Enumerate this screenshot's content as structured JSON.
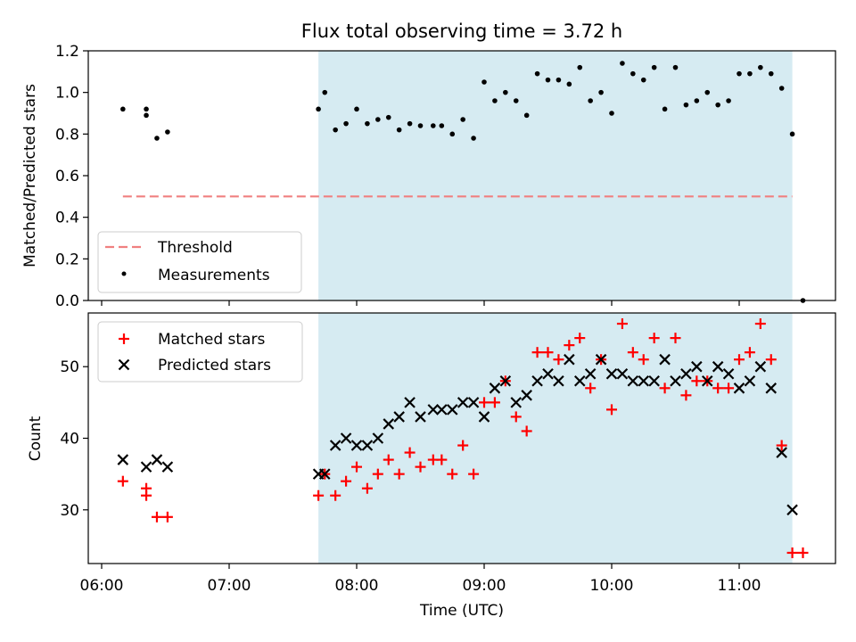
{
  "chart_data": [
    {
      "type": "scatter",
      "title": "Flux total observing time = 3.72 h",
      "ylabel": "Matched/Predicted stars",
      "xlabel": "",
      "xlim": [
        "06:00",
        "11:45"
      ],
      "ylim": [
        0,
        1.2
      ],
      "yticks": [
        "0.0",
        "0.2",
        "0.4",
        "0.6",
        "0.8",
        "1.0",
        "1.2"
      ],
      "highlight_span": [
        "07:42",
        "11:25"
      ],
      "highlight_color": "#add8e6",
      "legend_position": "lower-left",
      "threshold": {
        "name": "Threshold",
        "value": 0.5,
        "x_range": [
          "06:10",
          "11:25"
        ],
        "color": "#f08080"
      },
      "series": [
        {
          "name": "Measurements",
          "color": "#000000",
          "marker": "dot",
          "points": [
            [
              "06:10",
              0.92
            ],
            [
              "06:21",
              0.92
            ],
            [
              "06:21",
              0.89
            ],
            [
              "06:26",
              0.78
            ],
            [
              "06:31",
              0.81
            ],
            [
              "07:42",
              0.92
            ],
            [
              "07:45",
              1.0
            ],
            [
              "07:50",
              0.82
            ],
            [
              "07:55",
              0.85
            ],
            [
              "08:00",
              0.92
            ],
            [
              "08:05",
              0.85
            ],
            [
              "08:10",
              0.87
            ],
            [
              "08:15",
              0.88
            ],
            [
              "08:20",
              0.82
            ],
            [
              "08:25",
              0.85
            ],
            [
              "08:30",
              0.84
            ],
            [
              "08:36",
              0.84
            ],
            [
              "08:40",
              0.84
            ],
            [
              "08:45",
              0.8
            ],
            [
              "08:50",
              0.87
            ],
            [
              "08:55",
              0.78
            ],
            [
              "09:00",
              1.05
            ],
            [
              "09:05",
              0.96
            ],
            [
              "09:10",
              1.0
            ],
            [
              "09:15",
              0.96
            ],
            [
              "09:20",
              0.89
            ],
            [
              "09:25",
              1.09
            ],
            [
              "09:30",
              1.06
            ],
            [
              "09:35",
              1.06
            ],
            [
              "09:40",
              1.04
            ],
            [
              "09:45",
              1.12
            ],
            [
              "09:50",
              0.96
            ],
            [
              "09:55",
              1.0
            ],
            [
              "10:00",
              0.9
            ],
            [
              "10:05",
              1.14
            ],
            [
              "10:10",
              1.09
            ],
            [
              "10:15",
              1.06
            ],
            [
              "10:20",
              1.12
            ],
            [
              "10:25",
              0.92
            ],
            [
              "10:30",
              1.12
            ],
            [
              "10:35",
              0.94
            ],
            [
              "10:40",
              0.96
            ],
            [
              "10:45",
              1.0
            ],
            [
              "10:50",
              0.94
            ],
            [
              "10:55",
              0.96
            ],
            [
              "11:00",
              1.09
            ],
            [
              "11:05",
              1.09
            ],
            [
              "11:10",
              1.12
            ],
            [
              "11:15",
              1.09
            ],
            [
              "11:20",
              1.02
            ],
            [
              "11:25",
              0.8
            ],
            [
              "11:30",
              0.0
            ]
          ]
        }
      ]
    },
    {
      "type": "scatter",
      "title": "",
      "xlabel": "Time (UTC)",
      "ylabel": "Count",
      "xlim": [
        "06:00",
        "11:45"
      ],
      "ylim": [
        22.5,
        57.5
      ],
      "yticks": [
        "30",
        "40",
        "50"
      ],
      "xticks": [
        "06:00",
        "07:00",
        "08:00",
        "09:00",
        "10:00",
        "11:00"
      ],
      "highlight_span": [
        "07:42",
        "11:25"
      ],
      "highlight_color": "#add8e6",
      "legend_position": "top-left",
      "series": [
        {
          "name": "Matched stars",
          "color": "#ff0000",
          "marker": "plus",
          "points": [
            [
              "06:10",
              34
            ],
            [
              "06:21",
              33
            ],
            [
              "06:21",
              32
            ],
            [
              "06:26",
              29
            ],
            [
              "06:31",
              29
            ],
            [
              "07:42",
              32
            ],
            [
              "07:45",
              35
            ],
            [
              "07:50",
              32
            ],
            [
              "07:55",
              34
            ],
            [
              "08:00",
              36
            ],
            [
              "08:05",
              33
            ],
            [
              "08:10",
              35
            ],
            [
              "08:15",
              37
            ],
            [
              "08:20",
              35
            ],
            [
              "08:25",
              38
            ],
            [
              "08:30",
              36
            ],
            [
              "08:36",
              37
            ],
            [
              "08:40",
              37
            ],
            [
              "08:45",
              35
            ],
            [
              "08:50",
              39
            ],
            [
              "08:55",
              35
            ],
            [
              "09:00",
              45
            ],
            [
              "09:05",
              45
            ],
            [
              "09:10",
              48
            ],
            [
              "09:15",
              43
            ],
            [
              "09:20",
              41
            ],
            [
              "09:25",
              52
            ],
            [
              "09:30",
              52
            ],
            [
              "09:35",
              51
            ],
            [
              "09:40",
              53
            ],
            [
              "09:45",
              54
            ],
            [
              "09:50",
              47
            ],
            [
              "09:55",
              51
            ],
            [
              "10:00",
              44
            ],
            [
              "10:05",
              56
            ],
            [
              "10:10",
              52
            ],
            [
              "10:15",
              51
            ],
            [
              "10:20",
              54
            ],
            [
              "10:25",
              47
            ],
            [
              "10:30",
              54
            ],
            [
              "10:35",
              46
            ],
            [
              "10:40",
              48
            ],
            [
              "10:45",
              48
            ],
            [
              "10:50",
              47
            ],
            [
              "10:55",
              47
            ],
            [
              "11:00",
              51
            ],
            [
              "11:05",
              52
            ],
            [
              "11:10",
              56
            ],
            [
              "11:15",
              51
            ],
            [
              "11:20",
              39
            ],
            [
              "11:25",
              24
            ],
            [
              "11:30",
              24
            ]
          ]
        },
        {
          "name": "Predicted stars",
          "color": "#000000",
          "marker": "x",
          "points": [
            [
              "06:10",
              37
            ],
            [
              "06:21",
              36
            ],
            [
              "06:26",
              37
            ],
            [
              "06:31",
              36
            ],
            [
              "07:42",
              35
            ],
            [
              "07:45",
              35
            ],
            [
              "07:50",
              39
            ],
            [
              "07:55",
              40
            ],
            [
              "08:00",
              39
            ],
            [
              "08:05",
              39
            ],
            [
              "08:10",
              40
            ],
            [
              "08:15",
              42
            ],
            [
              "08:20",
              43
            ],
            [
              "08:25",
              45
            ],
            [
              "08:30",
              43
            ],
            [
              "08:36",
              44
            ],
            [
              "08:40",
              44
            ],
            [
              "08:45",
              44
            ],
            [
              "08:50",
              45
            ],
            [
              "08:55",
              45
            ],
            [
              "09:00",
              43
            ],
            [
              "09:05",
              47
            ],
            [
              "09:10",
              48
            ],
            [
              "09:15",
              45
            ],
            [
              "09:20",
              46
            ],
            [
              "09:25",
              48
            ],
            [
              "09:30",
              49
            ],
            [
              "09:35",
              48
            ],
            [
              "09:40",
              51
            ],
            [
              "09:45",
              48
            ],
            [
              "09:50",
              49
            ],
            [
              "09:55",
              51
            ],
            [
              "10:00",
              49
            ],
            [
              "10:05",
              49
            ],
            [
              "10:10",
              48
            ],
            [
              "10:15",
              48
            ],
            [
              "10:20",
              48
            ],
            [
              "10:25",
              51
            ],
            [
              "10:30",
              48
            ],
            [
              "10:35",
              49
            ],
            [
              "10:40",
              50
            ],
            [
              "10:45",
              48
            ],
            [
              "10:50",
              50
            ],
            [
              "10:55",
              49
            ],
            [
              "11:00",
              47
            ],
            [
              "11:05",
              48
            ],
            [
              "11:10",
              50
            ],
            [
              "11:15",
              47
            ],
            [
              "11:20",
              38
            ],
            [
              "11:25",
              30
            ]
          ]
        }
      ]
    }
  ]
}
